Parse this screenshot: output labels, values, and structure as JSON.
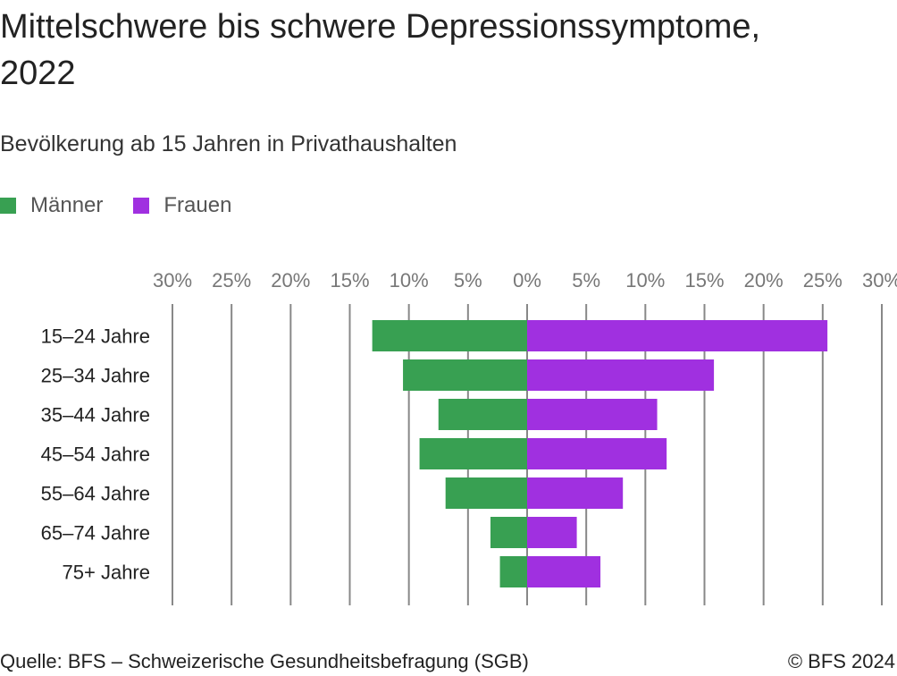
{
  "chart_data": {
    "type": "bar",
    "orientation": "horizontal-diverging",
    "title": "Mittelschwere bis schwere Depressionssymptome, 2022",
    "subtitle": "Bevölkerung ab 15 Jahren in Privathaushalten",
    "categories": [
      "15–24 Jahre",
      "25–34 Jahre",
      "35–44 Jahre",
      "45–54 Jahre",
      "55–64 Jahre",
      "65–74 Jahre",
      "75+ Jahre"
    ],
    "series": [
      {
        "name": "Männer",
        "color": "#38a052",
        "side": "left",
        "values": [
          13.1,
          10.5,
          7.5,
          9.1,
          6.9,
          3.1,
          2.3
        ]
      },
      {
        "name": "Frauen",
        "color": "#a030e0",
        "side": "right",
        "values": [
          25.4,
          15.8,
          11.0,
          11.8,
          8.1,
          4.2,
          6.2
        ]
      }
    ],
    "xlim": [
      -30,
      30
    ],
    "tick_values": [
      -30,
      -25,
      -20,
      -15,
      -10,
      -5,
      0,
      5,
      10,
      15,
      20,
      25,
      30
    ],
    "tick_labels": [
      "30%",
      "25%",
      "20%",
      "15%",
      "10%",
      "5%",
      "0%",
      "5%",
      "10%",
      "15%",
      "20%",
      "25%",
      "30%"
    ],
    "grid": true,
    "legend_position": "top-left"
  },
  "footer": {
    "source": "Quelle: BFS – Schweizerische Gesundheitsbefragung (SGB)",
    "copyright": "© BFS 2024"
  }
}
